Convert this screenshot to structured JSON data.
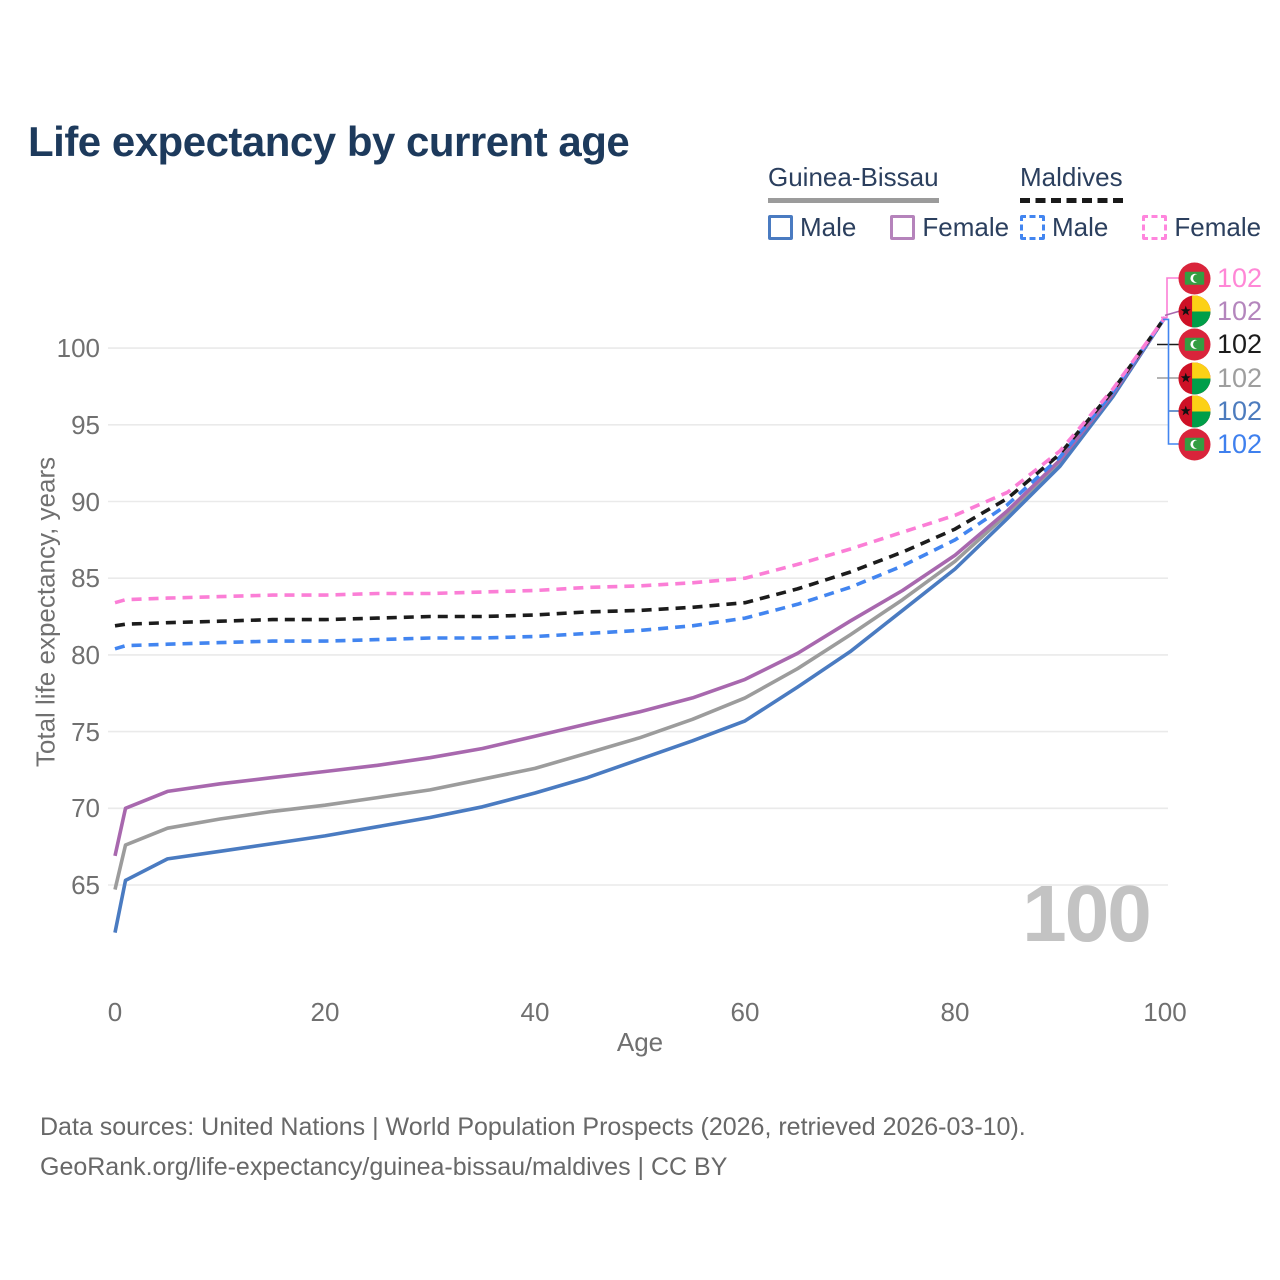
{
  "title": "Life expectancy by current age",
  "watermark_age": "100",
  "legend": {
    "groups": [
      {
        "name": "Guinea-Bissau",
        "style": "solid",
        "underline_color": "#9b9b9b",
        "items": [
          {
            "label": "Male",
            "color": "#4a7bc1",
            "dashed": false
          },
          {
            "label": "Female",
            "color": "#b583bb",
            "dashed": false
          }
        ]
      },
      {
        "name": "Maldives",
        "style": "dashed",
        "underline_color": "#1a1a1a",
        "items": [
          {
            "label": "Male",
            "color": "#4285f0",
            "dashed": true
          },
          {
            "label": "Female",
            "color": "#ff85dd",
            "dashed": true
          }
        ]
      }
    ]
  },
  "chart_data": {
    "type": "line",
    "title": "Life expectancy by current age",
    "xlabel": "Age",
    "ylabel": "Total life expectancy, years",
    "x_ticks": [
      0,
      20,
      40,
      60,
      80,
      100
    ],
    "y_ticks": [
      65,
      70,
      75,
      80,
      85,
      90,
      95,
      100
    ],
    "xlim": [
      0,
      100
    ],
    "ylim": [
      61,
      104
    ],
    "grid": "horizontal",
    "legend_position": "top-right",
    "x": [
      0,
      1,
      5,
      10,
      15,
      20,
      25,
      30,
      35,
      40,
      45,
      50,
      55,
      60,
      65,
      70,
      75,
      80,
      85,
      90,
      95,
      100
    ],
    "series": [
      {
        "id": "guinea-bissau-combined",
        "country": "Guinea-Bissau",
        "color": "#9c9c9c",
        "dashed": false,
        "values": [
          64.7,
          67.6,
          68.7,
          69.3,
          69.8,
          70.2,
          70.7,
          71.2,
          71.9,
          72.6,
          73.6,
          74.6,
          75.8,
          77.2,
          79.1,
          81.3,
          83.6,
          86.1,
          89.2,
          92.5,
          96.9,
          102
        ]
      },
      {
        "id": "guinea-bissau-male",
        "country": "Guinea-Bissau",
        "sex": "Male",
        "color": "#4a7bc1",
        "dashed": false,
        "values": [
          61.9,
          65.3,
          66.7,
          67.2,
          67.7,
          68.2,
          68.8,
          69.4,
          70.1,
          71.0,
          72.0,
          73.2,
          74.4,
          75.7,
          77.9,
          80.2,
          82.9,
          85.6,
          88.9,
          92.3,
          96.8,
          102
        ]
      },
      {
        "id": "guinea-bissau-female",
        "country": "Guinea-Bissau",
        "sex": "Female",
        "color": "#a868ae",
        "dashed": false,
        "values": [
          66.9,
          70.0,
          71.1,
          71.6,
          72.0,
          72.4,
          72.8,
          73.3,
          73.9,
          74.7,
          75.5,
          76.3,
          77.2,
          78.4,
          80.1,
          82.2,
          84.2,
          86.5,
          89.4,
          92.7,
          97.0,
          102
        ]
      },
      {
        "id": "maldives-male",
        "country": "Maldives",
        "sex": "Male",
        "color": "#4285f0",
        "dashed": true,
        "values": [
          80.4,
          80.6,
          80.7,
          80.8,
          80.9,
          80.9,
          81.0,
          81.1,
          81.1,
          81.2,
          81.4,
          81.6,
          81.9,
          82.4,
          83.3,
          84.4,
          85.8,
          87.5,
          89.8,
          92.9,
          97.1,
          102
        ]
      },
      {
        "id": "maldives-combined",
        "country": "Maldives",
        "color": "#1c1c1c",
        "dashed": true,
        "values": [
          81.9,
          82.0,
          82.1,
          82.2,
          82.3,
          82.3,
          82.4,
          82.5,
          82.5,
          82.6,
          82.8,
          82.9,
          83.1,
          83.4,
          84.3,
          85.4,
          86.7,
          88.2,
          90.2,
          93.1,
          97.2,
          102
        ]
      },
      {
        "id": "maldives-female",
        "country": "Maldives",
        "sex": "Female",
        "color": "#fb7ed6",
        "dashed": true,
        "values": [
          83.4,
          83.6,
          83.7,
          83.8,
          83.9,
          83.9,
          84.0,
          84.0,
          84.1,
          84.2,
          84.4,
          84.5,
          84.7,
          85.0,
          85.9,
          86.9,
          88.0,
          89.1,
          90.6,
          93.3,
          97.3,
          102
        ]
      }
    ],
    "end_labels": [
      {
        "series": "maldives-female",
        "flag": "maldives",
        "value": "102",
        "text_color": "#ff87d6",
        "line_color": "#fb7ed6"
      },
      {
        "series": "guinea-bissau-female",
        "flag": "guinea-bissau",
        "value": "102",
        "text_color": "#b486bd",
        "line_color": "#a868ae"
      },
      {
        "series": "maldives-combined",
        "flag": "maldives",
        "value": "102",
        "text_color": "#1c1c1c",
        "line_color": "#1c1c1c"
      },
      {
        "series": "guinea-bissau-combined",
        "flag": "guinea-bissau",
        "value": "102",
        "text_color": "#9e9e9e",
        "line_color": "#9c9c9c"
      },
      {
        "series": "guinea-bissau-male",
        "flag": "guinea-bissau",
        "value": "102",
        "text_color": "#4d7cbe",
        "line_color": "#4a7bc1"
      },
      {
        "series": "maldives-male",
        "flag": "maldives",
        "value": "102",
        "text_color": "#3f80ee",
        "line_color": "#4285f0"
      }
    ]
  },
  "colors": {
    "title": "#1d3a5c",
    "legend_text": "#2b3f5e",
    "grid": "#eaeaea",
    "tick_text": "#707070",
    "footer_text": "#686868",
    "watermark": "#c3c3c3",
    "maldives_flag_red": "#d9243b",
    "maldives_flag_green": "#349e42",
    "guinea_bissau_flag_red": "#ce1126",
    "guinea_bissau_flag_yellow": "#fcd116",
    "guinea_bissau_flag_green": "#009e49"
  },
  "footer": {
    "lines": [
      "Data sources: United Nations | World Population Prospects (2026, retrieved 2026-03-10).",
      "GeoRank.org/life-expectancy/guinea-bissau/maldives | CC BY"
    ]
  }
}
